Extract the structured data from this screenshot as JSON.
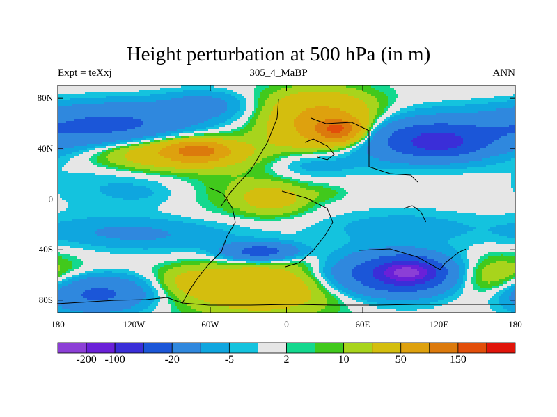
{
  "title": "Height perturbation at 500 hPa (in m)",
  "subtitle_left": "Expt = teXxj",
  "subtitle_center": "305_4_MaBP",
  "subtitle_right": "ANN",
  "chart_data": {
    "type": "heatmap",
    "projection": "cylindrical-equidistant",
    "x_range": [
      -180,
      180
    ],
    "y_range": [
      -90,
      90
    ],
    "x_ticks": [
      {
        "value": -180,
        "label": "180"
      },
      {
        "value": -120,
        "label": "120W"
      },
      {
        "value": -60,
        "label": "60W"
      },
      {
        "value": 0,
        "label": "0"
      },
      {
        "value": 60,
        "label": "60E"
      },
      {
        "value": 120,
        "label": "120E"
      },
      {
        "value": 180,
        "label": "180"
      }
    ],
    "y_ticks": [
      {
        "value": 80,
        "label": "80N"
      },
      {
        "value": 40,
        "label": "40N"
      },
      {
        "value": 0,
        "label": "0"
      },
      {
        "value": -40,
        "label": "40S"
      },
      {
        "value": -80,
        "label": "80S"
      }
    ],
    "colorbar": {
      "colors": [
        "#8c3fd6",
        "#6a20d8",
        "#3a2ed8",
        "#1b56d8",
        "#2f88de",
        "#0fa6df",
        "#14c3de",
        "#e6e6e6",
        "#14d88e",
        "#41c91c",
        "#a8d41c",
        "#d4be0e",
        "#dea10e",
        "#dc7a0c",
        "#e24e0a",
        "#e0140a"
      ],
      "labels": [
        {
          "after_index": 1,
          "text": "-200"
        },
        {
          "after_index": 2,
          "text": "-100"
        },
        {
          "after_index": 4,
          "text": "-20"
        },
        {
          "after_index": 6,
          "text": "-5"
        },
        {
          "after_index": 8,
          "text": "2"
        },
        {
          "after_index": 10,
          "text": "10"
        },
        {
          "after_index": 12,
          "text": "50"
        },
        {
          "after_index": 14,
          "text": "150"
        }
      ]
    },
    "features": [
      {
        "lon": -135,
        "lat": 58,
        "sx": 45,
        "sy": 12,
        "v": -60
      },
      {
        "lon": -65,
        "lat": 75,
        "sx": 25,
        "sy": 8,
        "v": -25
      },
      {
        "lon": -90,
        "lat": 38,
        "sx": 45,
        "sy": 10,
        "v": 50
      },
      {
        "lon": -70,
        "lat": 38,
        "sx": 15,
        "sy": 5,
        "v": 100
      },
      {
        "lon": 15,
        "lat": 80,
        "sx": 30,
        "sy": 8,
        "v": 8
      },
      {
        "lon": 30,
        "lat": 58,
        "sx": 30,
        "sy": 15,
        "v": 80
      },
      {
        "lon": 40,
        "lat": 55,
        "sx": 12,
        "sy": 6,
        "v": 120
      },
      {
        "lon": 100,
        "lat": 48,
        "sx": 55,
        "sy": 13,
        "v": -60
      },
      {
        "lon": 120,
        "lat": 45,
        "sx": 20,
        "sy": 7,
        "v": -80
      },
      {
        "lon": 20,
        "lat": 28,
        "sx": 25,
        "sy": 8,
        "v": -18
      },
      {
        "lon": -140,
        "lat": 10,
        "sx": 35,
        "sy": 15,
        "v": -10
      },
      {
        "lon": -110,
        "lat": 5,
        "sx": 18,
        "sy": 7,
        "v": -5
      },
      {
        "lon": -30,
        "lat": 5,
        "sx": 30,
        "sy": 15,
        "v": 10
      },
      {
        "lon": -10,
        "lat": 0,
        "sx": 18,
        "sy": 8,
        "v": 25
      },
      {
        "lon": 30,
        "lat": 5,
        "sx": 12,
        "sy": 5,
        "v": 6
      },
      {
        "lon": -90,
        "lat": -30,
        "sx": 55,
        "sy": 10,
        "v": -15
      },
      {
        "lon": -140,
        "lat": -25,
        "sx": 40,
        "sy": 8,
        "v": -12
      },
      {
        "lon": 90,
        "lat": -22,
        "sx": 45,
        "sy": 10,
        "v": -15
      },
      {
        "lon": -20,
        "lat": -42,
        "sx": 20,
        "sy": 5,
        "v": -70
      },
      {
        "lon": 10,
        "lat": -48,
        "sx": 20,
        "sy": 6,
        "v": 7
      },
      {
        "lon": 90,
        "lat": -60,
        "sx": 40,
        "sy": 12,
        "v": -90
      },
      {
        "lon": 95,
        "lat": -58,
        "sx": 15,
        "sy": 6,
        "v": -150
      },
      {
        "lon": 155,
        "lat": -62,
        "sx": 28,
        "sy": 12,
        "v": 40
      },
      {
        "lon": -150,
        "lat": -75,
        "sx": 30,
        "sy": 10,
        "v": -60
      },
      {
        "lon": -20,
        "lat": -70,
        "sx": 45,
        "sy": 14,
        "v": 45
      },
      {
        "lon": -80,
        "lat": -65,
        "sx": 15,
        "sy": 8,
        "v": 12
      }
    ]
  }
}
